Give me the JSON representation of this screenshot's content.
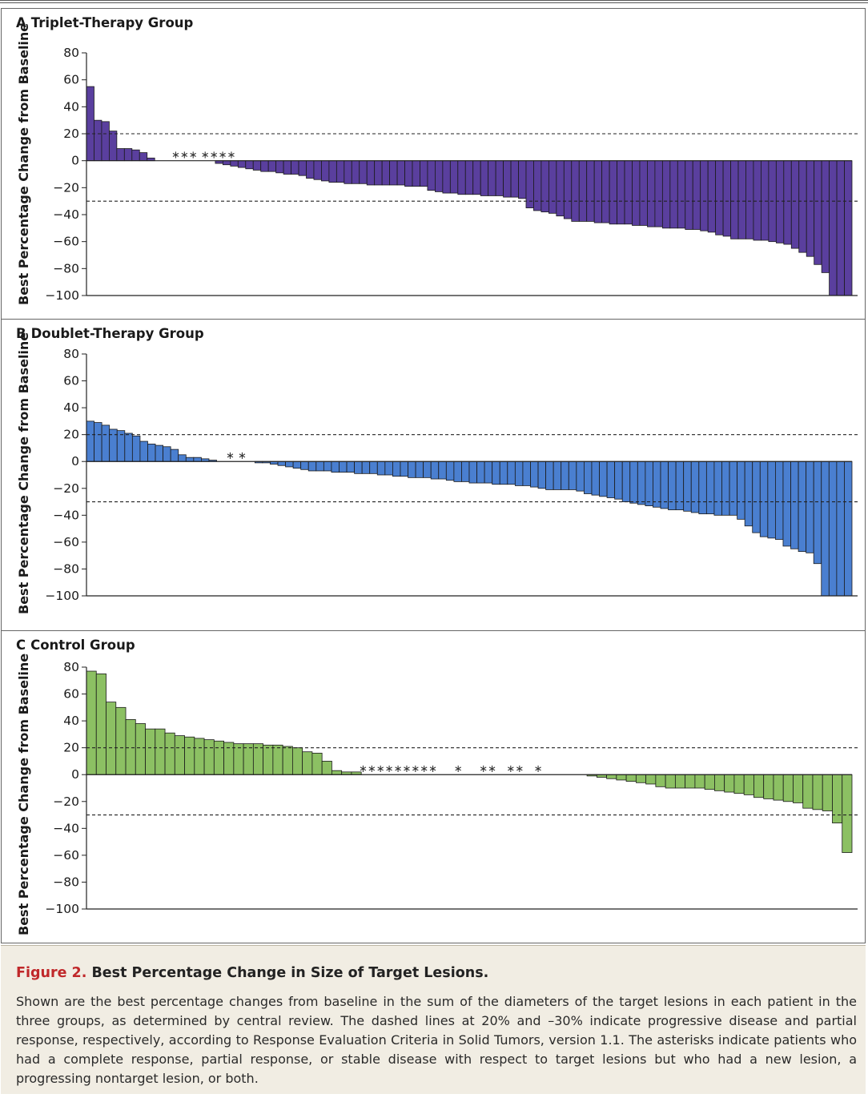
{
  "figure": {
    "number_label": "Figure 2.",
    "title": "Best Percentage Change in Size of Target Lesions.",
    "caption": "Shown are the best percentage changes from baseline in the sum of the diameters of the target lesions in each patient in the three groups, as determined by central review. The dashed lines at 20% and –30% indicate progressive disease and partial response, respectively, according to Response Evaluation Criteria in Solid Tumors, version 1.1. The asterisks indicate patients who had a complete response, partial response, or stable disease with respect to target lesions but who had a new lesion, a progressing nontarget lesion, or both."
  },
  "colors": {
    "triplet": "#5a3f9e",
    "doublet": "#4a7fd0",
    "control": "#8cc063",
    "reference_line": "#222222"
  },
  "chart_data": [
    {
      "type": "bar",
      "panel_letter": "A",
      "title": "Triplet-Therapy Group",
      "ylabel": "Best Percentage Change from Baseline",
      "ylim": [
        -100,
        80
      ],
      "yticks": [
        "80",
        "60",
        "40",
        "20",
        "0",
        "−20",
        "−40",
        "−60",
        "−80",
        "−100"
      ],
      "reference_lines": [
        20,
        -30
      ],
      "values": [
        55,
        30,
        29,
        22,
        9,
        9,
        8,
        6,
        2,
        0,
        0,
        0,
        0,
        0,
        0,
        0,
        0,
        -2,
        -3,
        -4,
        -5,
        -6,
        -7,
        -8,
        -8,
        -9,
        -10,
        -10,
        -11,
        -13,
        -14,
        -15,
        -16,
        -16,
        -17,
        -17,
        -17,
        -18,
        -18,
        -18,
        -18,
        -18,
        -19,
        -19,
        -19,
        -22,
        -23,
        -24,
        -24,
        -25,
        -25,
        -25,
        -26,
        -26,
        -26,
        -27,
        -27,
        -28,
        -35,
        -37,
        -38,
        -39,
        -41,
        -43,
        -45,
        -45,
        -45,
        -46,
        -46,
        -47,
        -47,
        -47,
        -48,
        -48,
        -49,
        -49,
        -50,
        -50,
        -50,
        -51,
        -51,
        -52,
        -53,
        -55,
        -56,
        -58,
        -58,
        -58,
        -59,
        -59,
        -60,
        -61,
        -62,
        -65,
        -68,
        -71,
        -77,
        -83,
        -100,
        -100,
        -100
      ],
      "asterisks": "∗∗∗ ∗∗∗∗"
    },
    {
      "type": "bar",
      "panel_letter": "B",
      "title": "Doublet-Therapy Group",
      "ylabel": "Best Percentage Change from Baseline",
      "ylim": [
        -100,
        80
      ],
      "yticks": [
        "80",
        "60",
        "40",
        "20",
        "0",
        "−20",
        "−40",
        "−60",
        "−80",
        "−100"
      ],
      "reference_lines": [
        20,
        -30
      ],
      "values": [
        30,
        29,
        27,
        24,
        23,
        21,
        19,
        15,
        13,
        12,
        11,
        9,
        5,
        3,
        3,
        2,
        1,
        0,
        0,
        0,
        0,
        0,
        -1,
        -1,
        -2,
        -3,
        -4,
        -5,
        -6,
        -7,
        -7,
        -7,
        -8,
        -8,
        -8,
        -9,
        -9,
        -9,
        -10,
        -10,
        -11,
        -11,
        -12,
        -12,
        -12,
        -13,
        -13,
        -14,
        -15,
        -15,
        -16,
        -16,
        -16,
        -17,
        -17,
        -17,
        -18,
        -18,
        -19,
        -20,
        -21,
        -21,
        -21,
        -21,
        -22,
        -24,
        -25,
        -26,
        -27,
        -28,
        -30,
        -31,
        -32,
        -33,
        -34,
        -35,
        -36,
        -36,
        -37,
        -38,
        -39,
        -39,
        -40,
        -40,
        -40,
        -43,
        -48,
        -53,
        -56,
        -57,
        -58,
        -63,
        -65,
        -67,
        -68,
        -76,
        -100,
        -100,
        -100,
        -100
      ],
      "asterisks": "∗ ∗"
    },
    {
      "type": "bar",
      "panel_letter": "C",
      "title": "Control Group",
      "ylabel": "Best Percentage Change from Baseline",
      "ylim": [
        -100,
        80
      ],
      "yticks": [
        "80",
        "60",
        "40",
        "20",
        "0",
        "−20",
        "−40",
        "−60",
        "−80",
        "−100"
      ],
      "reference_lines": [
        20,
        -30
      ],
      "values": [
        77,
        75,
        54,
        50,
        41,
        38,
        34,
        34,
        31,
        29,
        28,
        27,
        26,
        25,
        24,
        23,
        23,
        23,
        22,
        22,
        21,
        20,
        17,
        16,
        10,
        3,
        2,
        2,
        0,
        0,
        0,
        0,
        0,
        0,
        0,
        0,
        0,
        0,
        0,
        0,
        0,
        0,
        0,
        0,
        0,
        0,
        0,
        0,
        0,
        0,
        0,
        -1,
        -2,
        -3,
        -4,
        -5,
        -6,
        -7,
        -9,
        -10,
        -10,
        -10,
        -10,
        -11,
        -12,
        -13,
        -14,
        -15,
        -17,
        -18,
        -19,
        -20,
        -21,
        -25,
        -26,
        -27,
        -36,
        -58
      ],
      "asterisks": "∗∗∗∗∗∗∗∗∗     ∗     ∗∗   ∗∗   ∗"
    }
  ]
}
